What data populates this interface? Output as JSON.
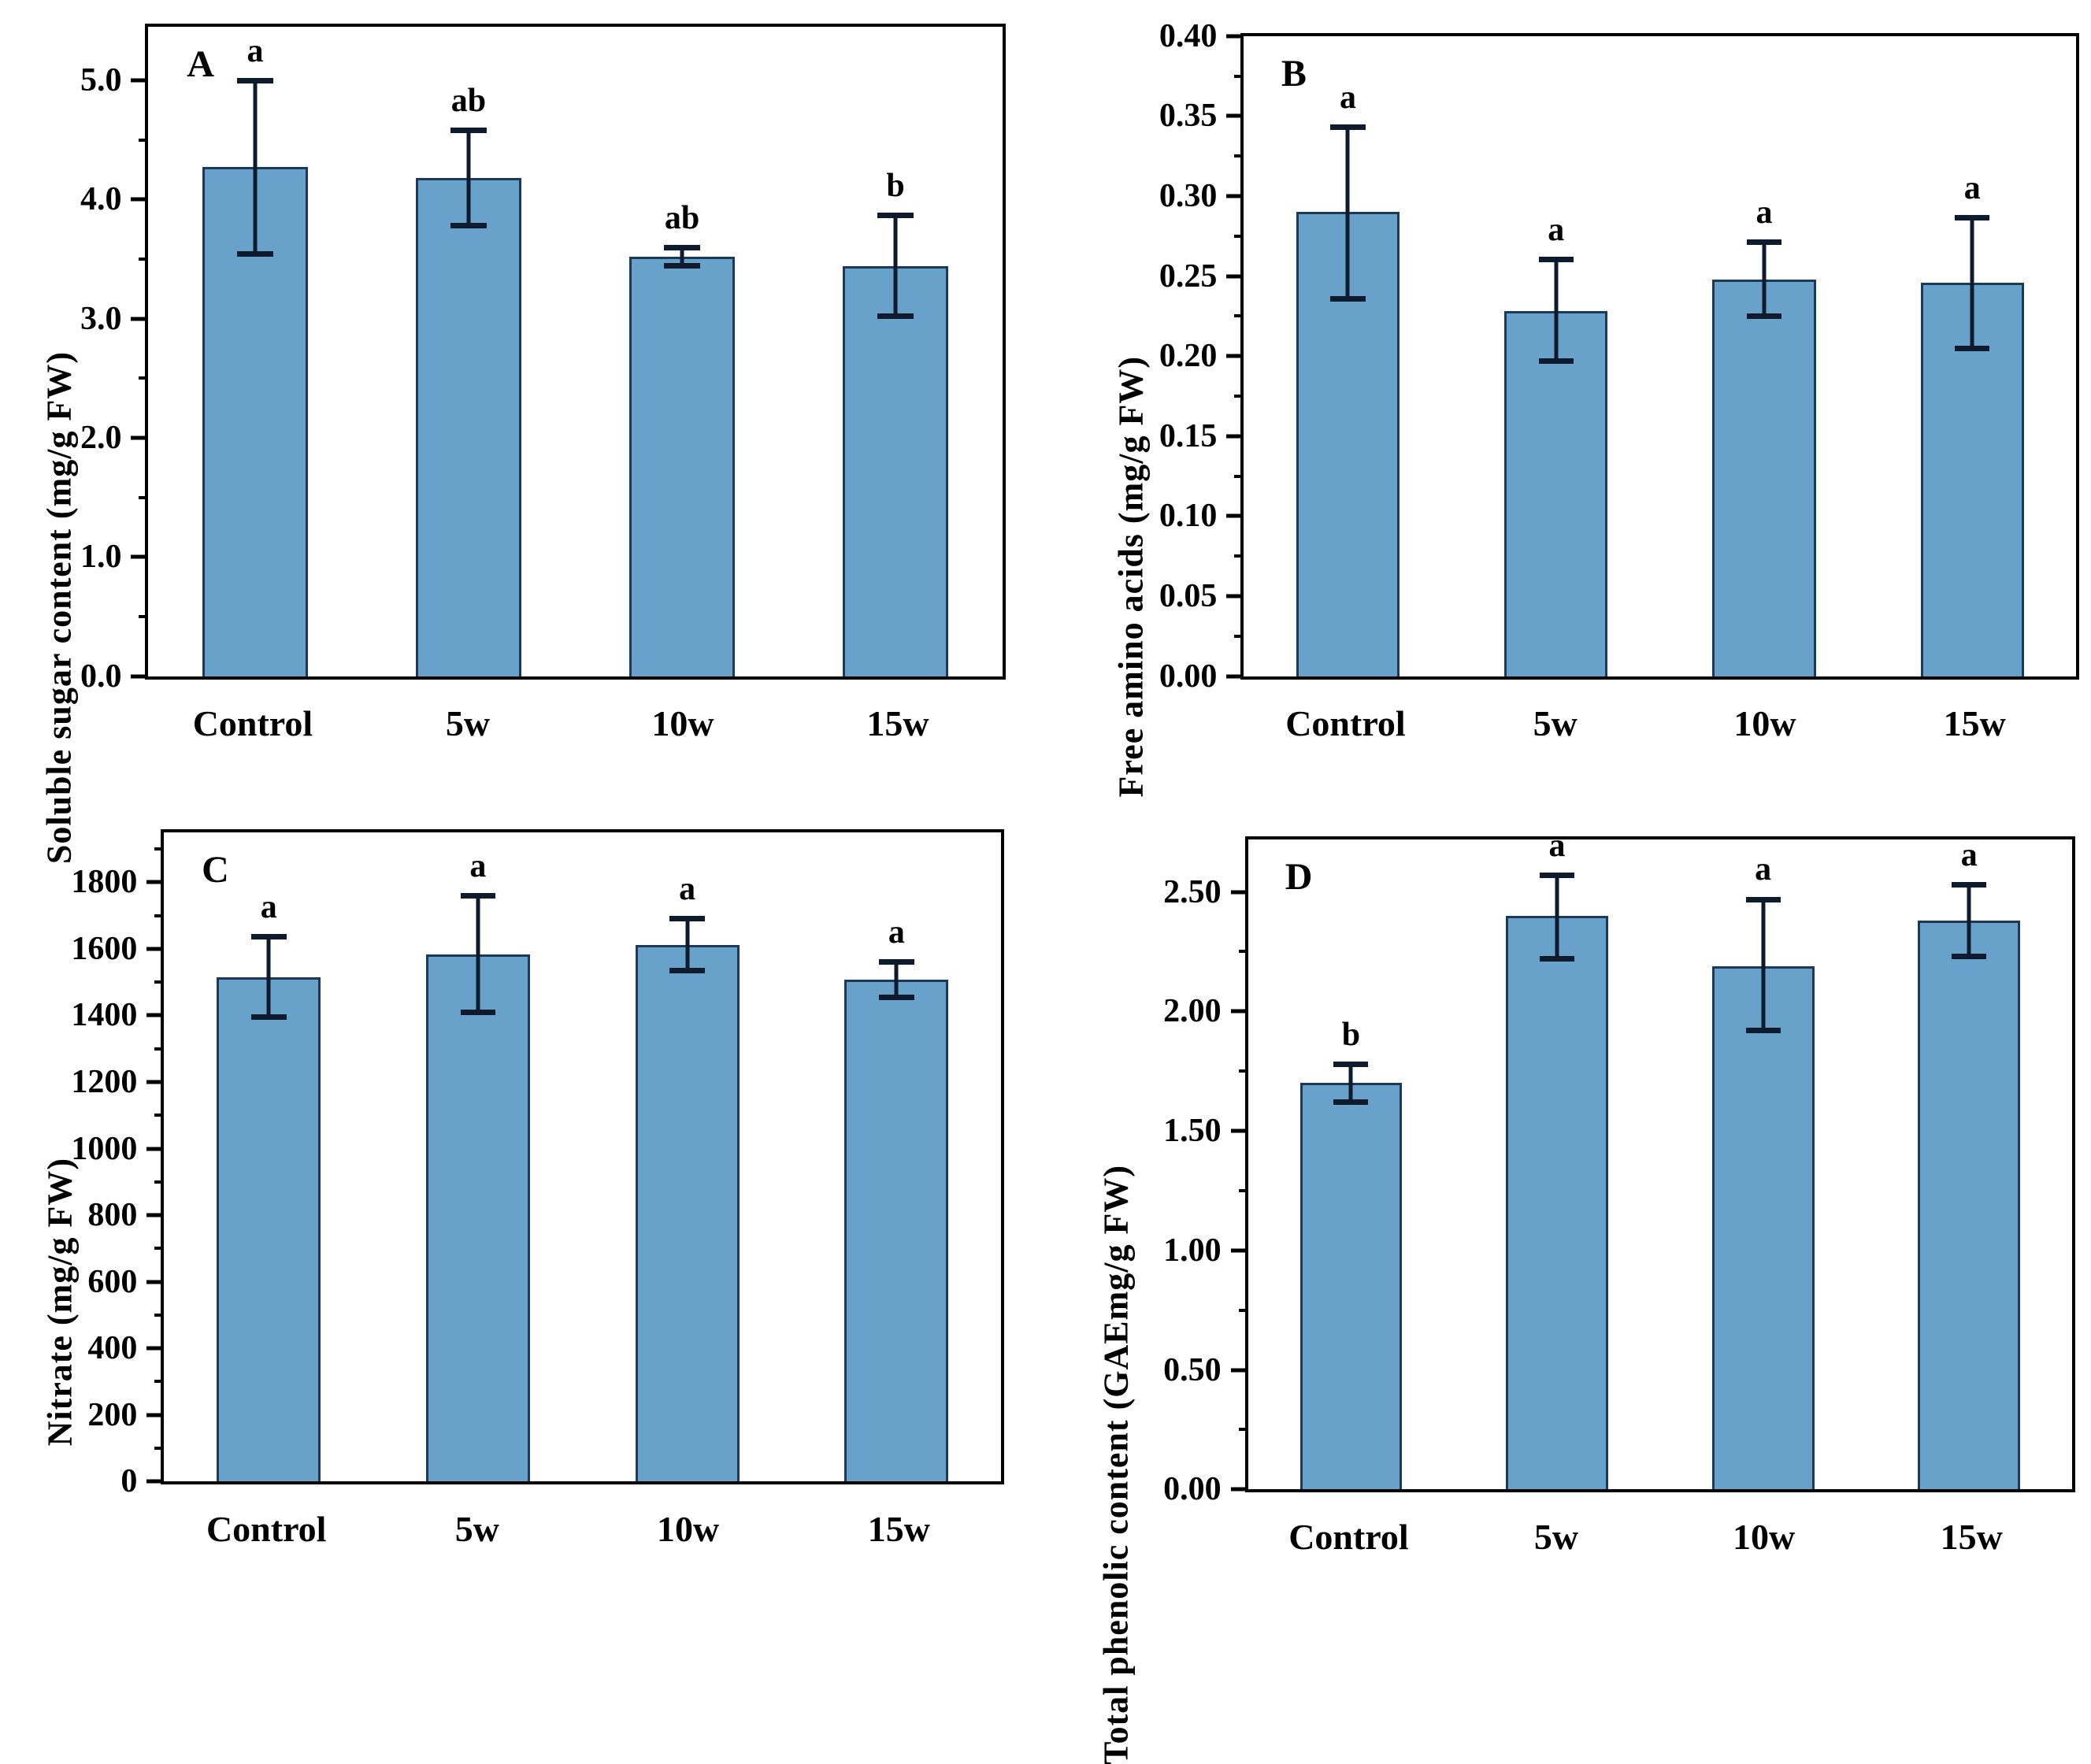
{
  "colors": {
    "bar_fill": "#68a2cb",
    "bar_border": "#1b3a5a",
    "error_bar": "#0e1b2c",
    "axis": "#000000",
    "background": "#ffffff"
  },
  "chart_data": [
    {
      "type": "bar",
      "panel_label": "A",
      "ylabel": "Soluble sugar content (mg/g FW)",
      "xlabel": "",
      "ylim": [
        0,
        5.45
      ],
      "minor_step": 0.5,
      "grid": false,
      "legend": "none",
      "yticks": [
        {
          "v": 0,
          "label": "0.0"
        },
        {
          "v": 1,
          "label": "1.0"
        },
        {
          "v": 2,
          "label": "2.0"
        },
        {
          "v": 3,
          "label": "3.0"
        },
        {
          "v": 4,
          "label": "4.0"
        },
        {
          "v": 5,
          "label": "5.0"
        }
      ],
      "categories": [
        "Control",
        "5w",
        "10w",
        "15w"
      ],
      "values": [
        4.27,
        4.18,
        3.52,
        3.44
      ],
      "err_low": [
        3.52,
        3.76,
        3.42,
        3.0
      ],
      "err_high": [
        5.02,
        4.6,
        3.62,
        3.89
      ],
      "sig_letters": [
        "a",
        "ab",
        "ab",
        "b"
      ]
    },
    {
      "type": "bar",
      "panel_label": "B",
      "ylabel": "Free amino acids (mg/g FW)",
      "xlabel": "",
      "ylim": [
        0,
        0.4
      ],
      "minor_step": 0.025,
      "grid": false,
      "legend": "none",
      "yticks": [
        {
          "v": 0.0,
          "label": "0.00"
        },
        {
          "v": 0.05,
          "label": "0.05"
        },
        {
          "v": 0.1,
          "label": "0.10"
        },
        {
          "v": 0.15,
          "label": "0.15"
        },
        {
          "v": 0.2,
          "label": "0.20"
        },
        {
          "v": 0.25,
          "label": "0.25"
        },
        {
          "v": 0.3,
          "label": "0.30"
        },
        {
          "v": 0.35,
          "label": "0.35"
        },
        {
          "v": 0.4,
          "label": "0.40"
        }
      ],
      "categories": [
        "Control",
        "5w",
        "10w",
        "15w"
      ],
      "values": [
        0.29,
        0.228,
        0.248,
        0.246
      ],
      "err_low": [
        0.234,
        0.195,
        0.223,
        0.203
      ],
      "err_high": [
        0.345,
        0.262,
        0.273,
        0.288
      ],
      "sig_letters": [
        "a",
        "a",
        "a",
        "a"
      ]
    },
    {
      "type": "bar",
      "panel_label": "C",
      "ylabel": "Nitrate (mg/g FW)",
      "xlabel": "",
      "ylim": [
        0,
        1950
      ],
      "minor_step": 100,
      "grid": false,
      "legend": "none",
      "yticks": [
        {
          "v": 0,
          "label": "0"
        },
        {
          "v": 200,
          "label": "200"
        },
        {
          "v": 400,
          "label": "400"
        },
        {
          "v": 600,
          "label": "600"
        },
        {
          "v": 800,
          "label": "800"
        },
        {
          "v": 1000,
          "label": "1000"
        },
        {
          "v": 1200,
          "label": "1200"
        },
        {
          "v": 1400,
          "label": "1400"
        },
        {
          "v": 1600,
          "label": "1600"
        },
        {
          "v": 1800,
          "label": "1800"
        }
      ],
      "categories": [
        "Control",
        "5w",
        "10w",
        "15w"
      ],
      "values": [
        1515,
        1583,
        1612,
        1507
      ],
      "err_low": [
        1387,
        1402,
        1527,
        1445
      ],
      "err_high": [
        1645,
        1767,
        1698,
        1568
      ],
      "sig_letters": [
        "a",
        "a",
        "a",
        "a"
      ]
    },
    {
      "type": "bar",
      "panel_label": "D",
      "ylabel": "Total phenolic content (GAEmg/g FW)",
      "xlabel": "",
      "ylim": [
        0,
        2.72
      ],
      "minor_step": 0.25,
      "grid": false,
      "legend": "none",
      "yticks": [
        {
          "v": 0.0,
          "label": "0.00"
        },
        {
          "v": 0.5,
          "label": "0.50"
        },
        {
          "v": 1.0,
          "label": "1.00"
        },
        {
          "v": 1.5,
          "label": "1.50"
        },
        {
          "v": 2.0,
          "label": "2.00"
        },
        {
          "v": 2.5,
          "label": "2.50"
        }
      ],
      "categories": [
        "Control",
        "5w",
        "10w",
        "15w"
      ],
      "values": [
        1.7,
        2.4,
        2.19,
        2.38
      ],
      "err_low": [
        1.61,
        2.21,
        1.91,
        2.22
      ],
      "err_high": [
        1.79,
        2.58,
        2.48,
        2.54
      ],
      "sig_letters": [
        "b",
        "a",
        "a",
        "a"
      ]
    }
  ]
}
